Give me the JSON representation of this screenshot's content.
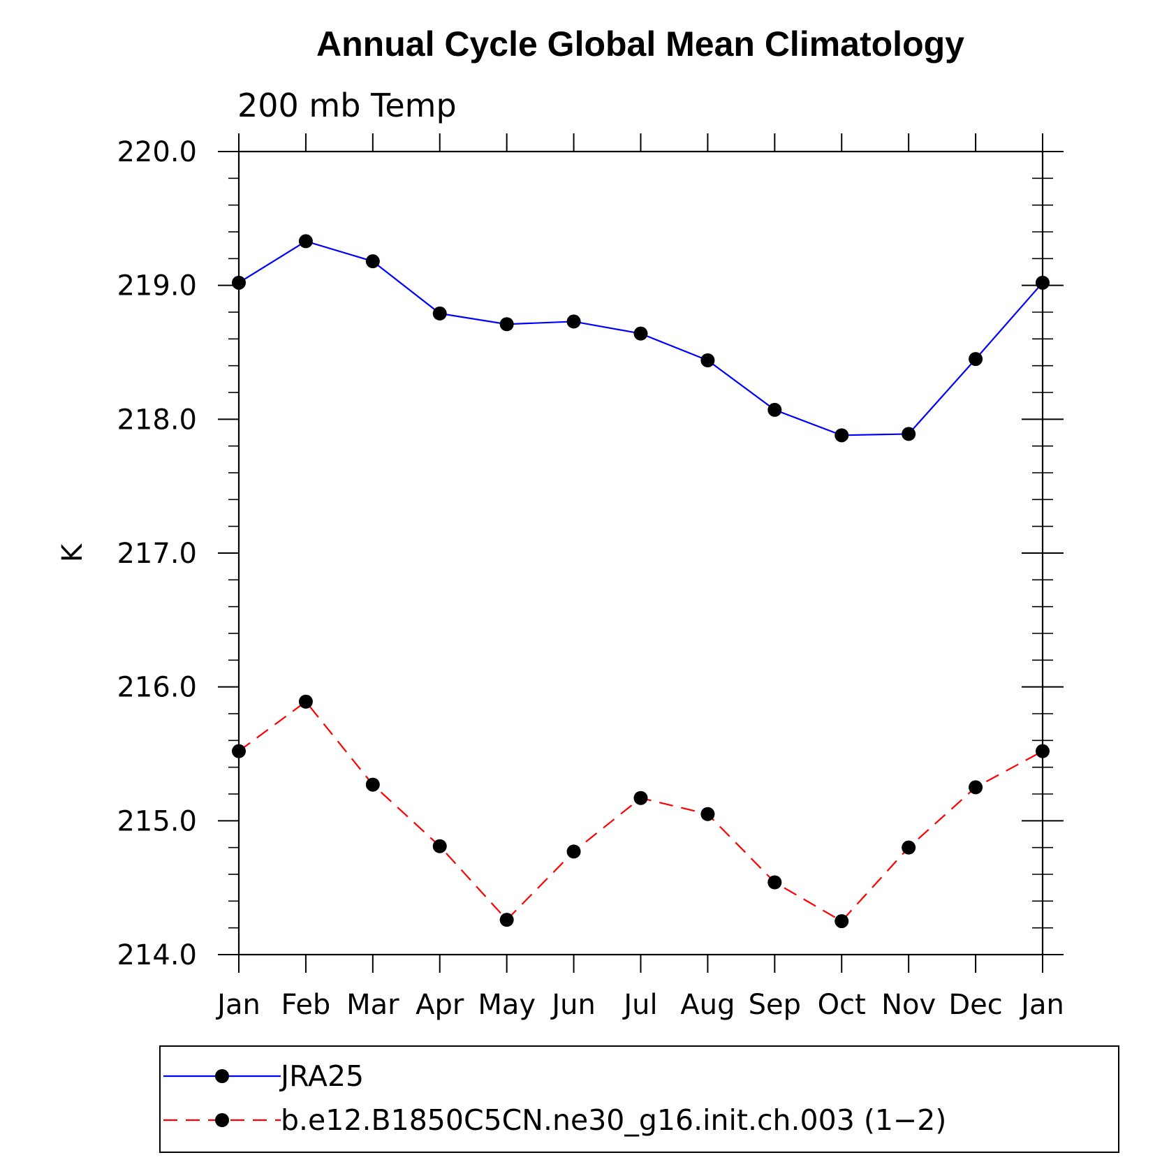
{
  "chart_data": {
    "type": "line",
    "title": "Annual Cycle Global Mean Climatology",
    "subtitle": "200 mb Temp",
    "ylabel": "K",
    "xlabel": "",
    "categories": [
      "Jan",
      "Feb",
      "Mar",
      "Apr",
      "May",
      "Jun",
      "Jul",
      "Aug",
      "Sep",
      "Oct",
      "Nov",
      "Dec",
      "Jan"
    ],
    "ylim": [
      214.0,
      220.0
    ],
    "yticks": [
      "214.0",
      "215.0",
      "216.0",
      "217.0",
      "218.0",
      "219.0",
      "220.0"
    ],
    "grid": false,
    "legend_position": "bottom",
    "series": [
      {
        "name": "JRA25",
        "color": "#0000ff",
        "line_style": "solid",
        "marker": "circle",
        "values": [
          219.02,
          219.33,
          219.18,
          218.79,
          218.71,
          218.73,
          218.64,
          218.44,
          218.07,
          217.88,
          217.89,
          218.45,
          219.02
        ]
      },
      {
        "name": "b.e12.B1850C5CN.ne30_g16.init.ch.003 (1−2)",
        "color": "#ff0000",
        "line_style": "dashed",
        "marker": "circle",
        "values": [
          215.52,
          215.89,
          215.27,
          214.81,
          214.26,
          214.77,
          215.17,
          215.05,
          214.54,
          214.25,
          214.8,
          215.25,
          215.52
        ]
      }
    ]
  }
}
